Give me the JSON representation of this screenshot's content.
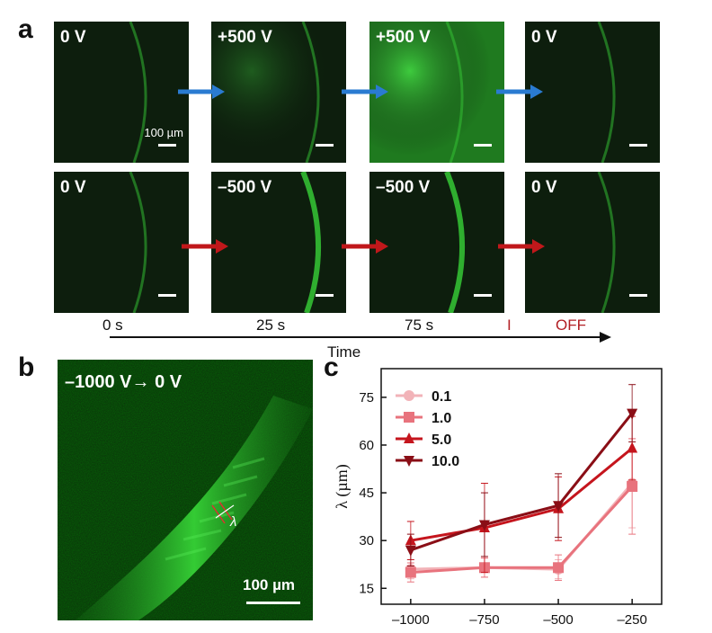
{
  "panel_labels": {
    "a": "a",
    "b": "b",
    "c": "c"
  },
  "panel_a": {
    "top_row": [
      "0 V",
      "+500 V",
      "+500 V",
      "0 V"
    ],
    "bottom_row": [
      "0 V",
      "–500 V",
      "–500 V",
      "0 V"
    ],
    "scale_bar_label": "100 µm",
    "time_labels": [
      "0 s",
      "25 s",
      "75 s"
    ],
    "marker": "I",
    "off_label": "OFF",
    "axis_label": "Time",
    "colors": {
      "top_arrow": "#2a7bd1",
      "bottom_arrow": "#c0181b",
      "off": "#b21f24"
    }
  },
  "panel_b": {
    "title": "–1000 V→ 0 V",
    "scale_bar_label": "100 µm",
    "lambda_label": "λ"
  },
  "chart_data": {
    "type": "line",
    "ylabel": "λ (µm)",
    "xlabel": "",
    "x": [
      -1000,
      -750,
      -500,
      -250
    ],
    "xticks": [
      "–1000",
      "–750",
      "–500",
      "–250"
    ],
    "yticks": [
      "15",
      "30",
      "45",
      "60",
      "75"
    ],
    "xlim": [
      -1100,
      -150
    ],
    "ylim": [
      10,
      84
    ],
    "legend_position": "top-left",
    "series": [
      {
        "name": "0.1",
        "marker": "circle",
        "color": "#f2b3b8",
        "values": [
          21,
          21.5,
          21,
          48
        ],
        "errors": [
          3,
          3,
          3,
          14
        ]
      },
      {
        "name": "1.0",
        "marker": "square",
        "color": "#e8737d",
        "values": [
          20,
          21.5,
          21.5,
          47
        ],
        "errors": [
          3,
          3,
          4,
          15
        ]
      },
      {
        "name": "5.0",
        "marker": "triangle-up",
        "color": "#c5151d",
        "values": [
          30,
          34,
          40,
          59
        ],
        "errors": [
          6,
          14,
          10,
          10
        ]
      },
      {
        "name": "10.0",
        "marker": "triangle-down",
        "color": "#8a0e16",
        "values": [
          27,
          35,
          41,
          70
        ],
        "errors": [
          5,
          10,
          10,
          9
        ]
      }
    ]
  }
}
